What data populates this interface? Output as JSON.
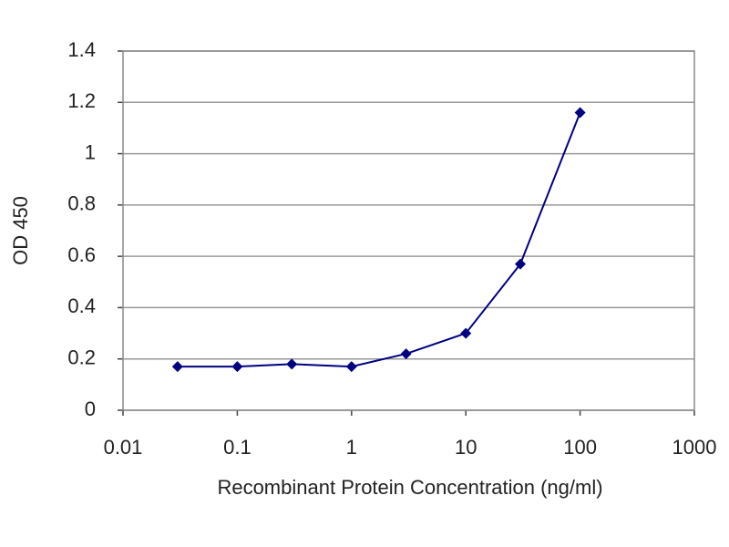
{
  "chart_data": {
    "type": "line",
    "x": [
      0.03,
      0.1,
      0.3,
      1,
      3,
      10,
      30,
      100
    ],
    "values": [
      0.17,
      0.17,
      0.18,
      0.17,
      0.22,
      0.3,
      0.57,
      1.16
    ],
    "color": "#000080",
    "xlabel": "Recombinant Protein Concentration (ng/ml)",
    "ylabel": "OD 450",
    "xscale": "log",
    "xlim": [
      0.01,
      1000
    ],
    "xticks": [
      0.01,
      0.1,
      1,
      10,
      100,
      1000
    ],
    "ylim": [
      0,
      1.4
    ],
    "yticks": [
      0,
      0.2,
      0.4,
      0.6,
      0.8,
      1,
      1.2,
      1.4
    ],
    "grid": true
  }
}
